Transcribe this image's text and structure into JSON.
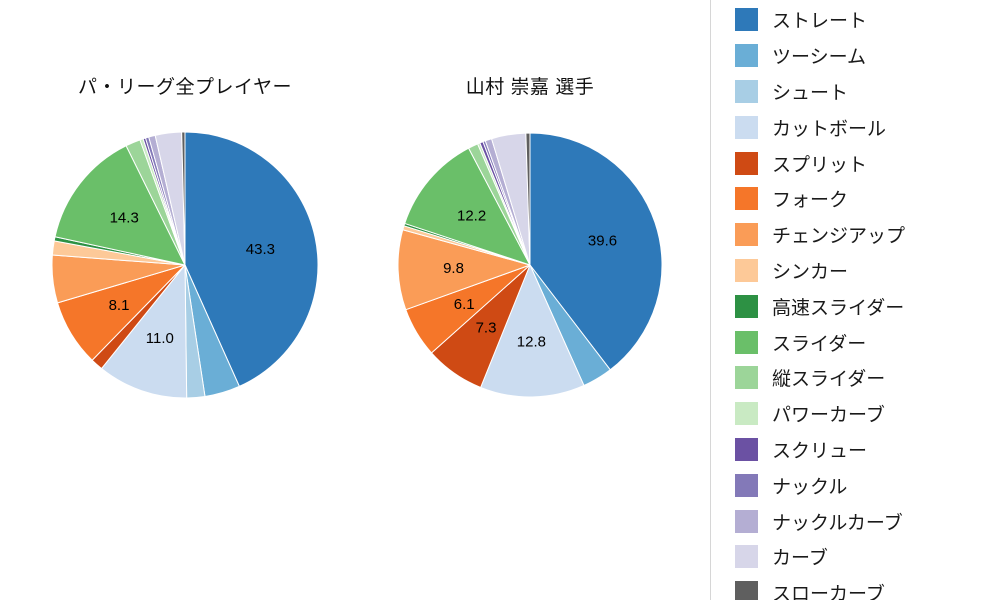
{
  "chart_data": [
    {
      "type": "pie",
      "title": "パ・リーグ全プレイヤー",
      "categories": [
        "ストレート",
        "ツーシーム",
        "シュート",
        "カットボール",
        "スプリット",
        "フォーク",
        "チェンジアップ",
        "シンカー",
        "高速スライダー",
        "スライダー",
        "縦スライダー",
        "パワーカーブ",
        "スクリュー",
        "ナックル",
        "ナックルカーブ",
        "カーブ",
        "スローカーブ"
      ],
      "values": [
        43.3,
        4.3,
        2.2,
        11.0,
        1.5,
        8.1,
        5.8,
        1.7,
        0.5,
        14.3,
        1.8,
        0.4,
        0.3,
        0.4,
        0.8,
        3.2,
        0.4
      ],
      "labeled_values": [
        43.3,
        11.0,
        8.1,
        14.3
      ],
      "label_threshold": 6.0,
      "start_angle_deg": 0,
      "direction": "clockwise",
      "legend_position": "right"
    },
    {
      "type": "pie",
      "title": "山村 崇嘉  選手",
      "categories": [
        "ストレート",
        "ツーシーム",
        "シュート",
        "カットボール",
        "スプリット",
        "フォーク",
        "チェンジアップ",
        "シンカー",
        "高速スライダー",
        "スライダー",
        "縦スライダー",
        "パワーカーブ",
        "スクリュー",
        "ナックル",
        "ナックルカーブ",
        "カーブ",
        "スローカーブ"
      ],
      "values": [
        39.6,
        3.7,
        0.0,
        12.8,
        7.3,
        6.1,
        9.8,
        0.5,
        0.3,
        12.2,
        1.2,
        0.3,
        0.4,
        0.3,
        0.8,
        4.2,
        0.5
      ],
      "labeled_values": [
        39.6,
        12.8,
        7.3,
        6.1,
        9.8,
        12.2
      ],
      "label_threshold": 6.0,
      "start_angle_deg": 0,
      "direction": "clockwise",
      "legend_position": "right"
    }
  ],
  "legend": {
    "items": [
      {
        "label": "ストレート",
        "color": "#2e79b9"
      },
      {
        "label": "ツーシーム",
        "color": "#6aaed6"
      },
      {
        "label": "シュート",
        "color": "#a8cee5"
      },
      {
        "label": "カットボール",
        "color": "#cbdcf0"
      },
      {
        "label": "スプリット",
        "color": "#cf4a14"
      },
      {
        "label": "フォーク",
        "color": "#f57629"
      },
      {
        "label": "チェンジアップ",
        "color": "#fa9c57"
      },
      {
        "label": "シンカー",
        "color": "#fdc998"
      },
      {
        "label": "高速スライダー",
        "color": "#2d9144"
      },
      {
        "label": "スライダー",
        "color": "#6abf69"
      },
      {
        "label": "縦スライダー",
        "color": "#9cd599"
      },
      {
        "label": "パワーカーブ",
        "color": "#c9eac3"
      },
      {
        "label": "スクリュー",
        "color": "#6b51a3"
      },
      {
        "label": "ナックル",
        "color": "#8379b8"
      },
      {
        "label": "ナックルカーブ",
        "color": "#b4aed3"
      },
      {
        "label": "カーブ",
        "color": "#d7d6e9"
      },
      {
        "label": "スローカーブ",
        "color": "#5f5f5f"
      }
    ]
  }
}
